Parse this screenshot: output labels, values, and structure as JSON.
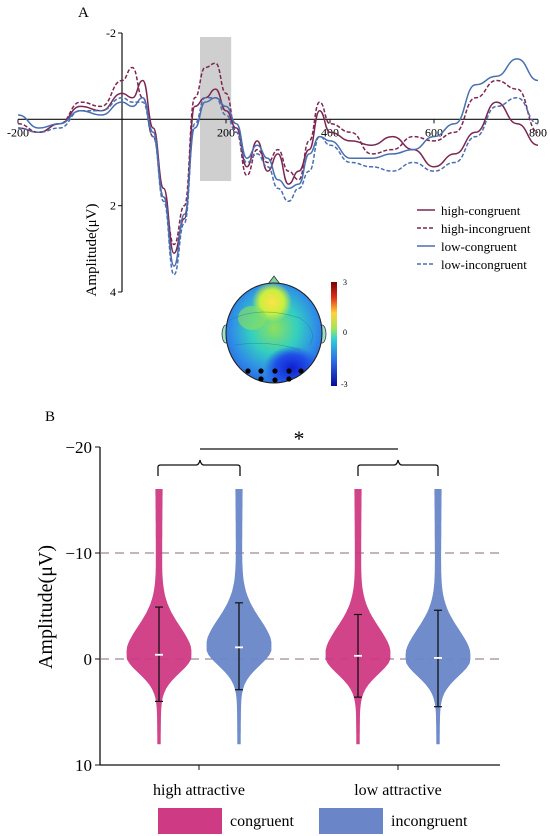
{
  "colors": {
    "high": "#7b2752",
    "low": "#4a6fb0",
    "congruent": "#cf3a84",
    "incongruent": "#6a86c9",
    "window": "#cfcfcf",
    "dashed_ref": "#8a6a80"
  },
  "panel_a": {
    "label": "A",
    "ylabel": "Amplitude(μV)",
    "legend": [
      "high-congruent",
      "high-incongruent",
      "low-congruent",
      "low-incongruent"
    ],
    "colorbar_labels": [
      "3",
      "0",
      "-3"
    ]
  },
  "panel_b": {
    "label": "B",
    "ylabel": "Amplitude(μV)",
    "significance": "*",
    "legend": [
      "congruent",
      "incongruent"
    ]
  },
  "chart_data": [
    {
      "type": "line",
      "panel": "A",
      "title": "",
      "xlabel": "",
      "ylabel": "Amplitude(μV)",
      "xlim": [
        -200,
        800
      ],
      "ylim": [
        4,
        -2
      ],
      "y_inverted": true,
      "xticks": [
        "-200",
        "200",
        "400",
        "600",
        "800"
      ],
      "yticks": [
        "-2",
        "2",
        "4"
      ],
      "highlight_window": [
        150,
        210
      ],
      "series": [
        {
          "name": "high-congruent",
          "style": "solid",
          "color_key": "high",
          "x": [
            -200,
            -160,
            -120,
            -80,
            -40,
            0,
            20,
            40,
            60,
            80,
            100,
            120,
            140,
            160,
            180,
            200,
            220,
            240,
            260,
            280,
            300,
            320,
            340,
            360,
            380,
            400,
            440,
            480,
            520,
            560,
            600,
            640,
            680,
            720,
            760,
            800
          ],
          "y": [
            0.2,
            0.3,
            0.1,
            -0.3,
            -0.2,
            -0.6,
            -0.5,
            -0.9,
            0.2,
            1.6,
            3.1,
            2.3,
            -0.3,
            -0.5,
            -0.7,
            -0.2,
            0.2,
            1.1,
            0.5,
            1.2,
            0.8,
            1.5,
            1.2,
            0.7,
            -0.2,
            0.3,
            0.5,
            0.6,
            0.4,
            0.7,
            1.1,
            0.8,
            0.3,
            -0.4,
            0.1,
            0.6
          ]
        },
        {
          "name": "high-incongruent",
          "style": "dashed",
          "color_key": "high",
          "x": [
            -200,
            -160,
            -120,
            -80,
            -40,
            0,
            20,
            40,
            60,
            80,
            100,
            120,
            140,
            160,
            180,
            200,
            220,
            240,
            260,
            280,
            300,
            320,
            340,
            360,
            380,
            400,
            440,
            480,
            520,
            560,
            600,
            640,
            680,
            720,
            760,
            800
          ],
          "y": [
            0.1,
            0.3,
            0.1,
            -0.4,
            -0.3,
            -0.9,
            -1.2,
            -0.5,
            0.4,
            1.8,
            2.9,
            2.0,
            -0.5,
            -1.2,
            -1.3,
            -0.6,
            0.3,
            1.3,
            0.7,
            1.0,
            0.7,
            1.2,
            1.4,
            0.5,
            -0.4,
            0.1,
            0.3,
            0.8,
            0.7,
            0.4,
            0.5,
            0.3,
            -0.5,
            -0.9,
            -0.7,
            0.3
          ]
        },
        {
          "name": "low-congruent",
          "style": "solid",
          "color_key": "low",
          "x": [
            -200,
            -160,
            -120,
            -80,
            -40,
            0,
            20,
            40,
            60,
            80,
            100,
            120,
            140,
            160,
            180,
            200,
            220,
            240,
            260,
            280,
            300,
            320,
            340,
            360,
            380,
            400,
            440,
            480,
            520,
            560,
            600,
            640,
            680,
            720,
            760,
            800
          ],
          "y": [
            -0.1,
            0.2,
            0.1,
            -0.2,
            -0.1,
            -0.4,
            -0.3,
            -0.5,
            0.3,
            1.8,
            3.4,
            2.2,
            0.2,
            -0.4,
            -0.5,
            -0.3,
            0.1,
            0.9,
            0.6,
            0.9,
            1.4,
            1.6,
            1.5,
            0.8,
            0.4,
            0.5,
            0.9,
            0.9,
            0.8,
            0.7,
            0.4,
            0.1,
            -0.8,
            -1.0,
            -1.4,
            -0.9
          ]
        },
        {
          "name": "low-incongruent",
          "style": "dashed",
          "color_key": "low",
          "x": [
            -200,
            -160,
            -120,
            -80,
            -40,
            0,
            20,
            40,
            60,
            80,
            100,
            120,
            140,
            160,
            180,
            200,
            220,
            240,
            260,
            280,
            300,
            320,
            340,
            360,
            380,
            400,
            440,
            480,
            520,
            560,
            600,
            640,
            680,
            720,
            760,
            800
          ],
          "y": [
            0.2,
            0.3,
            0.2,
            -0.2,
            -0.2,
            -0.5,
            -0.4,
            -0.4,
            0.4,
            1.9,
            3.6,
            2.4,
            0.1,
            -0.5,
            -0.5,
            -0.1,
            0.3,
            1.0,
            0.8,
            1.1,
            1.6,
            1.9,
            1.6,
            1.2,
            0.4,
            0.6,
            1.0,
            1.1,
            1.2,
            1.0,
            1.2,
            1.0,
            0.4,
            -0.3,
            -0.5,
            0.1
          ]
        }
      ]
    },
    {
      "type": "violin",
      "panel": "B",
      "title": "",
      "xlabel": "",
      "ylabel": "Amplitude(μV)",
      "ylim": [
        10,
        -20
      ],
      "y_inverted": true,
      "yticks": [
        "-20",
        "-10",
        "0",
        "10"
      ],
      "reference_lines": [
        -10,
        0
      ],
      "categories": [
        "high attractive",
        "low attractive"
      ],
      "series": [
        {
          "name": "congruent",
          "color_key": "congruent",
          "values": [
            {
              "category": "high attractive",
              "min": -16,
              "max": 8,
              "median": -0.4,
              "whisker_low": -4.9,
              "whisker_high": 4.0
            },
            {
              "category": "low attractive",
              "min": -16,
              "max": 8,
              "median": -0.3,
              "whisker_low": -4.2,
              "whisker_high": 3.6
            }
          ]
        },
        {
          "name": "incongruent",
          "color_key": "incongruent",
          "values": [
            {
              "category": "high attractive",
              "min": -16,
              "max": 8,
              "median": -1.1,
              "whisker_low": -5.3,
              "whisker_high": 2.9
            },
            {
              "category": "low attractive",
              "min": -16,
              "max": 8,
              "median": -0.1,
              "whisker_low": -4.6,
              "whisker_high": 4.5
            }
          ]
        }
      ]
    }
  ]
}
